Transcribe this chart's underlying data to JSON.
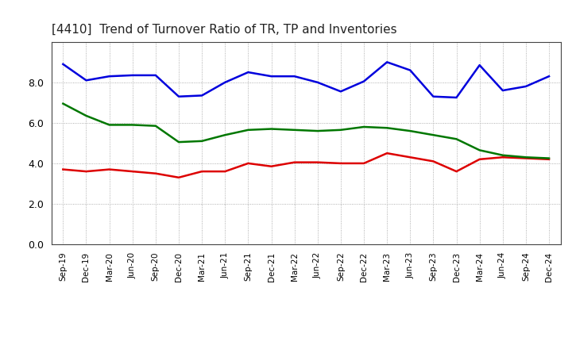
{
  "title": "[4410]  Trend of Turnover Ratio of TR, TP and Inventories",
  "labels": [
    "Sep-19",
    "Dec-19",
    "Mar-20",
    "Jun-20",
    "Sep-20",
    "Dec-20",
    "Mar-21",
    "Jun-21",
    "Sep-21",
    "Dec-21",
    "Mar-22",
    "Jun-22",
    "Sep-22",
    "Dec-22",
    "Mar-23",
    "Jun-23",
    "Sep-23",
    "Dec-23",
    "Mar-24",
    "Jun-24",
    "Sep-24",
    "Dec-24"
  ],
  "trade_receivables": [
    3.7,
    3.6,
    3.7,
    3.6,
    3.5,
    3.3,
    3.6,
    3.6,
    4.0,
    3.85,
    4.05,
    4.05,
    4.0,
    4.0,
    4.5,
    4.3,
    4.1,
    3.6,
    4.2,
    4.3,
    4.25,
    4.2
  ],
  "trade_payables": [
    8.9,
    8.1,
    8.3,
    8.35,
    8.35,
    7.3,
    7.35,
    8.0,
    8.5,
    8.3,
    8.3,
    8.0,
    7.55,
    8.05,
    9.0,
    8.6,
    7.3,
    7.25,
    8.85,
    7.6,
    7.8,
    8.3
  ],
  "inventories": [
    6.95,
    6.35,
    5.9,
    5.9,
    5.85,
    5.05,
    5.1,
    5.4,
    5.65,
    5.7,
    5.65,
    5.6,
    5.65,
    5.8,
    5.75,
    5.6,
    5.4,
    5.2,
    4.65,
    4.4,
    4.3,
    4.25
  ],
  "tr_color": "#dd0000",
  "tp_color": "#0000dd",
  "inv_color": "#007700",
  "line_width": 1.8,
  "ylim": [
    0.0,
    10.0
  ],
  "yticks": [
    0.0,
    2.0,
    4.0,
    6.0,
    8.0
  ],
  "title_color": "#222222",
  "title_fontsize": 11,
  "background_color": "#ffffff",
  "grid_color": "#999999"
}
